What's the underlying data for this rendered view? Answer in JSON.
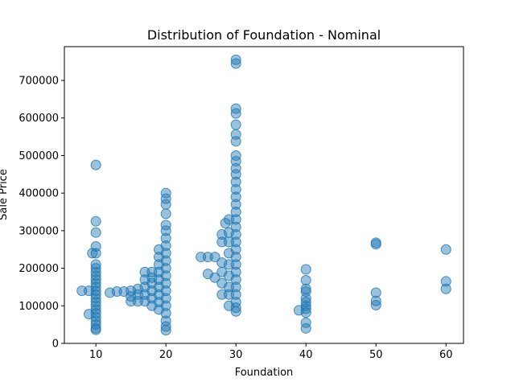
{
  "chart_data": {
    "type": "scatter",
    "title": "Distribution of Foundation - Nominal",
    "xlabel": "Foundation",
    "ylabel": "Sale Price",
    "xlim": [
      5.5,
      62.5
    ],
    "ylim": [
      0,
      790000
    ],
    "xticks": [
      10,
      20,
      30,
      40,
      50,
      60
    ],
    "yticks": [
      0,
      100000,
      200000,
      300000,
      400000,
      500000,
      600000,
      700000
    ],
    "grid": false,
    "point_color": "#1f77b4",
    "point_alpha": 0.45,
    "series": [
      {
        "values": [
          {
            "x": 8,
            "y": 140000
          },
          {
            "x": 9,
            "y": 140000
          },
          {
            "x": 9,
            "y": 78000
          },
          {
            "x": 9.5,
            "y": 240000
          },
          {
            "x": 10,
            "y": 475000
          },
          {
            "x": 10,
            "y": 325000
          },
          {
            "x": 10,
            "y": 295000
          },
          {
            "x": 10,
            "y": 258000
          },
          {
            "x": 10,
            "y": 240000
          },
          {
            "x": 10,
            "y": 210000
          },
          {
            "x": 10,
            "y": 200000
          },
          {
            "x": 10,
            "y": 190000
          },
          {
            "x": 10,
            "y": 180000
          },
          {
            "x": 10,
            "y": 170000
          },
          {
            "x": 10,
            "y": 160000
          },
          {
            "x": 10,
            "y": 150000
          },
          {
            "x": 10,
            "y": 140000
          },
          {
            "x": 10,
            "y": 130000
          },
          {
            "x": 10,
            "y": 120000
          },
          {
            "x": 10,
            "y": 110000
          },
          {
            "x": 10,
            "y": 100000
          },
          {
            "x": 10,
            "y": 90000
          },
          {
            "x": 10,
            "y": 80000
          },
          {
            "x": 10,
            "y": 70000
          },
          {
            "x": 10,
            "y": 60000
          },
          {
            "x": 10,
            "y": 50000
          },
          {
            "x": 10,
            "y": 40000
          },
          {
            "x": 10,
            "y": 36000
          },
          {
            "x": 12,
            "y": 135000
          },
          {
            "x": 13,
            "y": 138000
          },
          {
            "x": 14,
            "y": 138000
          },
          {
            "x": 15,
            "y": 140000
          },
          {
            "x": 15,
            "y": 125000
          },
          {
            "x": 15,
            "y": 112000
          },
          {
            "x": 16,
            "y": 145000
          },
          {
            "x": 16,
            "y": 130000
          },
          {
            "x": 16,
            "y": 112000
          },
          {
            "x": 17,
            "y": 190000
          },
          {
            "x": 17,
            "y": 170000
          },
          {
            "x": 17,
            "y": 150000
          },
          {
            "x": 17,
            "y": 130000
          },
          {
            "x": 17,
            "y": 112000
          },
          {
            "x": 18,
            "y": 190000
          },
          {
            "x": 18,
            "y": 175000
          },
          {
            "x": 18,
            "y": 160000
          },
          {
            "x": 18,
            "y": 140000
          },
          {
            "x": 18,
            "y": 120000
          },
          {
            "x": 18,
            "y": 100000
          },
          {
            "x": 19,
            "y": 250000
          },
          {
            "x": 19,
            "y": 230000
          },
          {
            "x": 19,
            "y": 210000
          },
          {
            "x": 19,
            "y": 190000
          },
          {
            "x": 19,
            "y": 170000
          },
          {
            "x": 19,
            "y": 150000
          },
          {
            "x": 19,
            "y": 130000
          },
          {
            "x": 19,
            "y": 110000
          },
          {
            "x": 19,
            "y": 90000
          },
          {
            "x": 20,
            "y": 400000
          },
          {
            "x": 20,
            "y": 385000
          },
          {
            "x": 20,
            "y": 370000
          },
          {
            "x": 20,
            "y": 345000
          },
          {
            "x": 20,
            "y": 315000
          },
          {
            "x": 20,
            "y": 300000
          },
          {
            "x": 20,
            "y": 280000
          },
          {
            "x": 20,
            "y": 260000
          },
          {
            "x": 20,
            "y": 240000
          },
          {
            "x": 20,
            "y": 220000
          },
          {
            "x": 20,
            "y": 200000
          },
          {
            "x": 20,
            "y": 180000
          },
          {
            "x": 20,
            "y": 160000
          },
          {
            "x": 20,
            "y": 140000
          },
          {
            "x": 20,
            "y": 120000
          },
          {
            "x": 20,
            "y": 100000
          },
          {
            "x": 20,
            "y": 80000
          },
          {
            "x": 20,
            "y": 60000
          },
          {
            "x": 20,
            "y": 45000
          },
          {
            "x": 20,
            "y": 35000
          },
          {
            "x": 25,
            "y": 230000
          },
          {
            "x": 26,
            "y": 230000
          },
          {
            "x": 26,
            "y": 185000
          },
          {
            "x": 27,
            "y": 230000
          },
          {
            "x": 27,
            "y": 175000
          },
          {
            "x": 28,
            "y": 290000
          },
          {
            "x": 28,
            "y": 270000
          },
          {
            "x": 28,
            "y": 215000
          },
          {
            "x": 28,
            "y": 190000
          },
          {
            "x": 28,
            "y": 160000
          },
          {
            "x": 28,
            "y": 130000
          },
          {
            "x": 28.5,
            "y": 320000
          },
          {
            "x": 29,
            "y": 330000
          },
          {
            "x": 29,
            "y": 295000
          },
          {
            "x": 29,
            "y": 270000
          },
          {
            "x": 29,
            "y": 240000
          },
          {
            "x": 29,
            "y": 210000
          },
          {
            "x": 29,
            "y": 180000
          },
          {
            "x": 29,
            "y": 150000
          },
          {
            "x": 29,
            "y": 130000
          },
          {
            "x": 29,
            "y": 100000
          },
          {
            "x": 30,
            "y": 755000
          },
          {
            "x": 30,
            "y": 745000
          },
          {
            "x": 30,
            "y": 625000
          },
          {
            "x": 30,
            "y": 612000
          },
          {
            "x": 30,
            "y": 582000
          },
          {
            "x": 30,
            "y": 556000
          },
          {
            "x": 30,
            "y": 538000
          },
          {
            "x": 30,
            "y": 500000
          },
          {
            "x": 30,
            "y": 485000
          },
          {
            "x": 30,
            "y": 466000
          },
          {
            "x": 30,
            "y": 450000
          },
          {
            "x": 30,
            "y": 430000
          },
          {
            "x": 30,
            "y": 410000
          },
          {
            "x": 30,
            "y": 390000
          },
          {
            "x": 30,
            "y": 370000
          },
          {
            "x": 30,
            "y": 350000
          },
          {
            "x": 30,
            "y": 330000
          },
          {
            "x": 30,
            "y": 310000
          },
          {
            "x": 30,
            "y": 290000
          },
          {
            "x": 30,
            "y": 270000
          },
          {
            "x": 30,
            "y": 250000
          },
          {
            "x": 30,
            "y": 230000
          },
          {
            "x": 30,
            "y": 210000
          },
          {
            "x": 30,
            "y": 190000
          },
          {
            "x": 30,
            "y": 170000
          },
          {
            "x": 30,
            "y": 150000
          },
          {
            "x": 30,
            "y": 130000
          },
          {
            "x": 30,
            "y": 110000
          },
          {
            "x": 30,
            "y": 95000
          },
          {
            "x": 30,
            "y": 85000
          },
          {
            "x": 39,
            "y": 88000
          },
          {
            "x": 40,
            "y": 197000
          },
          {
            "x": 40,
            "y": 168000
          },
          {
            "x": 40,
            "y": 145000
          },
          {
            "x": 40,
            "y": 138000
          },
          {
            "x": 40,
            "y": 120000
          },
          {
            "x": 40,
            "y": 110000
          },
          {
            "x": 40,
            "y": 100000
          },
          {
            "x": 40,
            "y": 92000
          },
          {
            "x": 40,
            "y": 82000
          },
          {
            "x": 40,
            "y": 55000
          },
          {
            "x": 40,
            "y": 40000
          },
          {
            "x": 50,
            "y": 268000
          },
          {
            "x": 50,
            "y": 264000
          },
          {
            "x": 50,
            "y": 135000
          },
          {
            "x": 50,
            "y": 113000
          },
          {
            "x": 50,
            "y": 102000
          },
          {
            "x": 60,
            "y": 250000
          },
          {
            "x": 60,
            "y": 165000
          },
          {
            "x": 60,
            "y": 145000
          }
        ]
      }
    ]
  }
}
